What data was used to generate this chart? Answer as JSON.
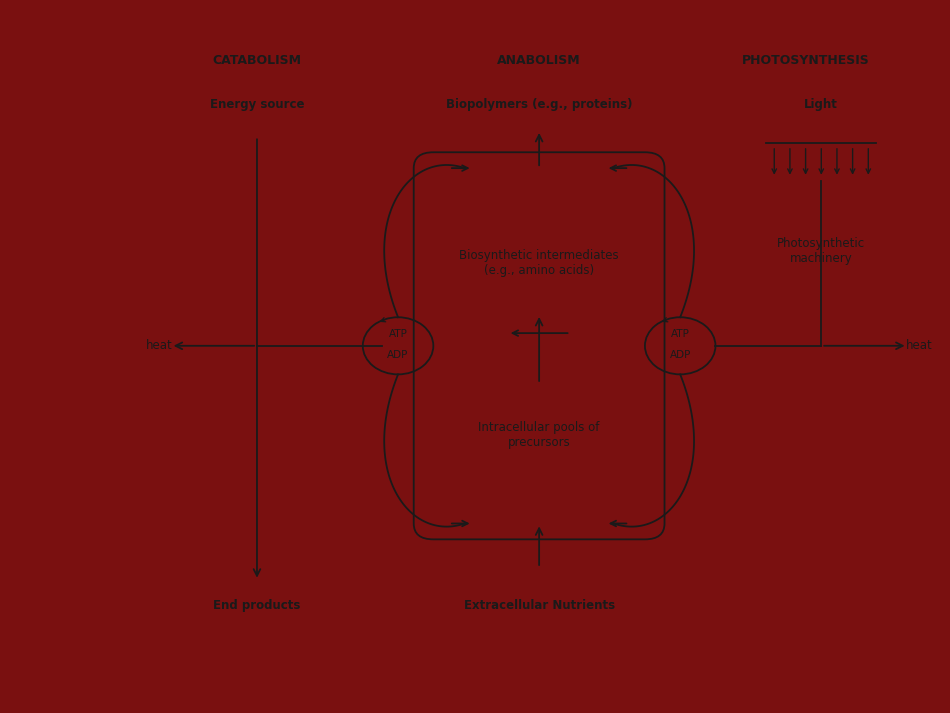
{
  "outer_bg": "#7a1010",
  "panel_bg": "#f0f0f0",
  "line_color": "#1a1a1a",
  "title_catabolism": "CATABOLISM",
  "title_anabolism": "ANABOLISM",
  "title_photosynthesis": "PHOTOSYNTHESIS",
  "label_energy_source": "Energy source",
  "label_end_products": "End products",
  "label_biopolymers": "Biopolymers (e.g., proteins)",
  "label_biosynthetic": "Biosynthetic intermediates\n(e.g., amino acids)",
  "label_intracellular": "Intracellular pools of\nprecursors",
  "label_extracellular": "Extracellular Nutrients",
  "label_heat_left": "heat",
  "label_heat_right": "heat",
  "label_atp_left": "ATP",
  "label_adp_left": "ADP",
  "label_atp_right": "ATP",
  "label_adp_right": "ADP",
  "label_light": "Light",
  "label_photosynthetic": "Photosynthetic\nmachinery",
  "fs_header": 9,
  "fs_label": 8.5,
  "fs_small": 7.5
}
